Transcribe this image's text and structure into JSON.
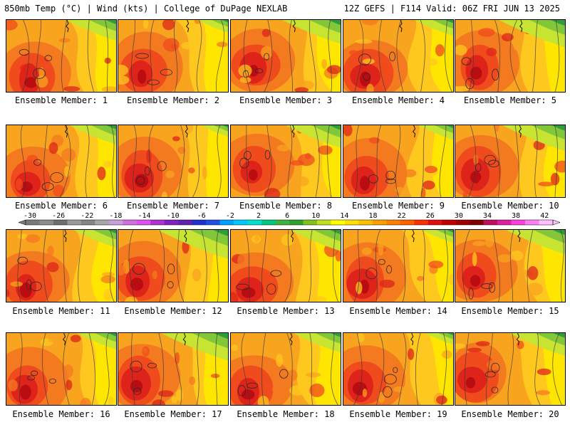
{
  "header": {
    "left": "850mb Temp (°C) | Wind (kts) | College of DuPage NEXLAB",
    "right": "12Z GEFS | F114 Valid: 06Z FRI JUN 13 2025"
  },
  "members": [
    "Ensemble Member: 1",
    "Ensemble Member: 2",
    "Ensemble Member: 3",
    "Ensemble Member: 4",
    "Ensemble Member: 5",
    "Ensemble Member: 6",
    "Ensemble Member: 7",
    "Ensemble Member: 8",
    "Ensemble Member: 9",
    "Ensemble Member: 10",
    "Ensemble Member: 11",
    "Ensemble Member: 12",
    "Ensemble Member: 13",
    "Ensemble Member: 14",
    "Ensemble Member: 15",
    "Ensemble Member: 16",
    "Ensemble Member: 17",
    "Ensemble Member: 18",
    "Ensemble Member: 19",
    "Ensemble Member: 20"
  ],
  "scale": {
    "labels": [
      "-30",
      "-26",
      "-22",
      "-18",
      "-14",
      "-10",
      "-6",
      "-2",
      "2",
      "6",
      "10",
      "14",
      "18",
      "22",
      "26",
      "30",
      "34",
      "38",
      "42"
    ],
    "colors": [
      "#7a7a7a",
      "#8c8c8c",
      "#6e6e6e",
      "#9a9a9a",
      "#858585",
      "#a8a8a8",
      "#c8a0d8",
      "#d070e0",
      "#e050f0",
      "#b030d0",
      "#8020c0",
      "#6020b0",
      "#2030d0",
      "#2050e0",
      "#00a0ff",
      "#00c8ff",
      "#00e0d0",
      "#00c880",
      "#40b040",
      "#30a030",
      "#80c020",
      "#c0e020",
      "#ffff00",
      "#ffe000",
      "#ffc000",
      "#ffa000",
      "#ff8000",
      "#ff6000",
      "#ff3000",
      "#e01010",
      "#c00000",
      "#a00000",
      "#800000",
      "#c01060",
      "#e020a0",
      "#ff40e0",
      "#ff80f0",
      "#ffc0ff"
    ],
    "heat": [
      "#ffe600",
      "#ffc81e",
      "#f8a41f",
      "#f47a20",
      "#f04b1c",
      "#de241a",
      "#b90d12"
    ],
    "cool": [
      "#c7e433",
      "#82c63a",
      "#2f9e3a"
    ]
  }
}
